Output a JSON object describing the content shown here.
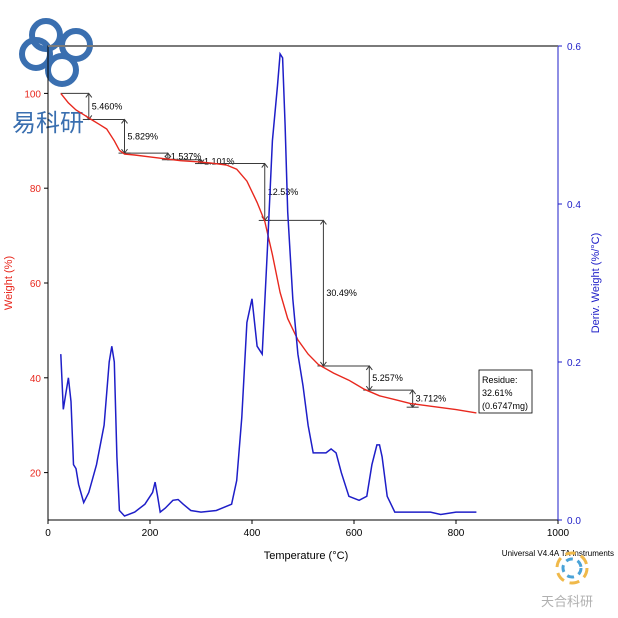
{
  "watermark_top": {
    "text": "易科研",
    "color": "#3a6fb0"
  },
  "watermark_bottom": {
    "text": "天合科研",
    "color": "#b0b0b0"
  },
  "instrument": "Universal V4.4A TA Instruments",
  "colors": {
    "weight": "#e8281e",
    "deriv": "#1e1ec8",
    "annot": "#3a3a3a",
    "axis": "#000000"
  },
  "chart_data": {
    "type": "line",
    "xlabel": "Temperature (°C)",
    "ylabel_left": "Weight (%)",
    "ylabel_right": "Deriv. Weight (%/°C)",
    "xlim": [
      0,
      1000
    ],
    "ylim_left": [
      10,
      110
    ],
    "ylim_right": [
      0,
      0.6
    ],
    "x_ticks": [
      0,
      200,
      400,
      600,
      800,
      1000
    ],
    "y_left_ticks": [
      20,
      40,
      60,
      80,
      100
    ],
    "y_right_ticks": [
      0.0,
      0.2,
      0.4,
      0.6
    ],
    "x_tick_labels": [
      "0",
      "200",
      "400",
      "600",
      "800",
      "1000"
    ],
    "y_left_tick_labels": [
      "20",
      "40",
      "60",
      "80",
      "100"
    ],
    "y_right_tick_labels": [
      "0.0",
      "0.2",
      "0.4",
      "0.6"
    ],
    "series": [
      {
        "name": "Weight (%)",
        "axis": "left",
        "x": [
          25,
          40,
          55,
          70,
          85,
          100,
          115,
          130,
          140,
          150,
          170,
          200,
          230,
          260,
          290,
          320,
          350,
          370,
          390,
          410,
          425,
          440,
          455,
          470,
          490,
          510,
          530,
          560,
          590,
          620,
          650,
          680,
          710,
          750,
          800,
          840
        ],
        "y": [
          100,
          98,
          96.5,
          95.5,
          94.5,
          93.5,
          92.5,
          90,
          88,
          87.2,
          87,
          86.6,
          86.2,
          85.8,
          85.6,
          85.3,
          84.9,
          84,
          81.5,
          77,
          73,
          66,
          58,
          52.5,
          48,
          45,
          42.8,
          41,
          39.5,
          37.6,
          36.2,
          35.4,
          34.6,
          34,
          33.3,
          32.6
        ]
      },
      {
        "name": "Deriv. Weight (%/°C)",
        "axis": "right",
        "x": [
          25,
          30,
          35,
          40,
          45,
          50,
          55,
          60,
          70,
          80,
          95,
          110,
          120,
          125,
          130,
          135,
          140,
          150,
          170,
          190,
          205,
          210,
          215,
          220,
          230,
          245,
          255,
          265,
          280,
          300,
          330,
          360,
          370,
          380,
          390,
          400,
          410,
          420,
          430,
          440,
          450,
          455,
          460,
          465,
          470,
          480,
          490,
          500,
          510,
          520,
          530,
          545,
          555,
          565,
          575,
          590,
          610,
          625,
          635,
          645,
          650,
          655,
          665,
          680,
          700,
          720,
          750,
          770,
          800,
          840
        ],
        "y": [
          0.21,
          0.14,
          0.16,
          0.18,
          0.15,
          0.07,
          0.065,
          0.045,
          0.022,
          0.035,
          0.07,
          0.12,
          0.2,
          0.22,
          0.2,
          0.08,
          0.012,
          0.005,
          0.01,
          0.02,
          0.035,
          0.048,
          0.03,
          0.01,
          0.015,
          0.025,
          0.026,
          0.02,
          0.012,
          0.01,
          0.012,
          0.02,
          0.05,
          0.13,
          0.25,
          0.28,
          0.22,
          0.21,
          0.34,
          0.48,
          0.55,
          0.59,
          0.585,
          0.5,
          0.39,
          0.28,
          0.21,
          0.17,
          0.12,
          0.085,
          0.085,
          0.085,
          0.09,
          0.085,
          0.06,
          0.03,
          0.025,
          0.03,
          0.07,
          0.095,
          0.095,
          0.08,
          0.03,
          0.01,
          0.01,
          0.01,
          0.01,
          0.007,
          0.01,
          0.01
        ]
      }
    ],
    "annotations": [
      {
        "label": "5.460%",
        "x1": 25,
        "x2": 80,
        "y_top": 100,
        "y_bot": 94.5
      },
      {
        "label": "5.829%",
        "x1": 80,
        "x2": 150,
        "y_top": 94.5,
        "y_bot": 87.4
      },
      {
        "label": "1.537%",
        "x1": 150,
        "x2": 235,
        "y_top": 87.4,
        "y_bot": 86.0
      },
      {
        "label": "1.101%",
        "x1": 235,
        "x2": 300,
        "y_top": 86.0,
        "y_bot": 85.2
      },
      {
        "label": "12.53%",
        "x1": 300,
        "x2": 425,
        "y_top": 85.2,
        "y_bot": 73.2
      },
      {
        "label": "30.49%",
        "x1": 425,
        "x2": 540,
        "y_top": 73.2,
        "y_bot": 42.5
      },
      {
        "label": "5.257%",
        "x1": 540,
        "x2": 630,
        "y_top": 42.5,
        "y_bot": 37.4
      },
      {
        "label": "3.712%",
        "x1": 630,
        "x2": 715,
        "y_top": 37.4,
        "y_bot": 33.8
      }
    ],
    "residue": {
      "lines": [
        "Residue:",
        "32.61%",
        "(0.6747mg)"
      ],
      "x": 845,
      "y": 32.6
    }
  }
}
